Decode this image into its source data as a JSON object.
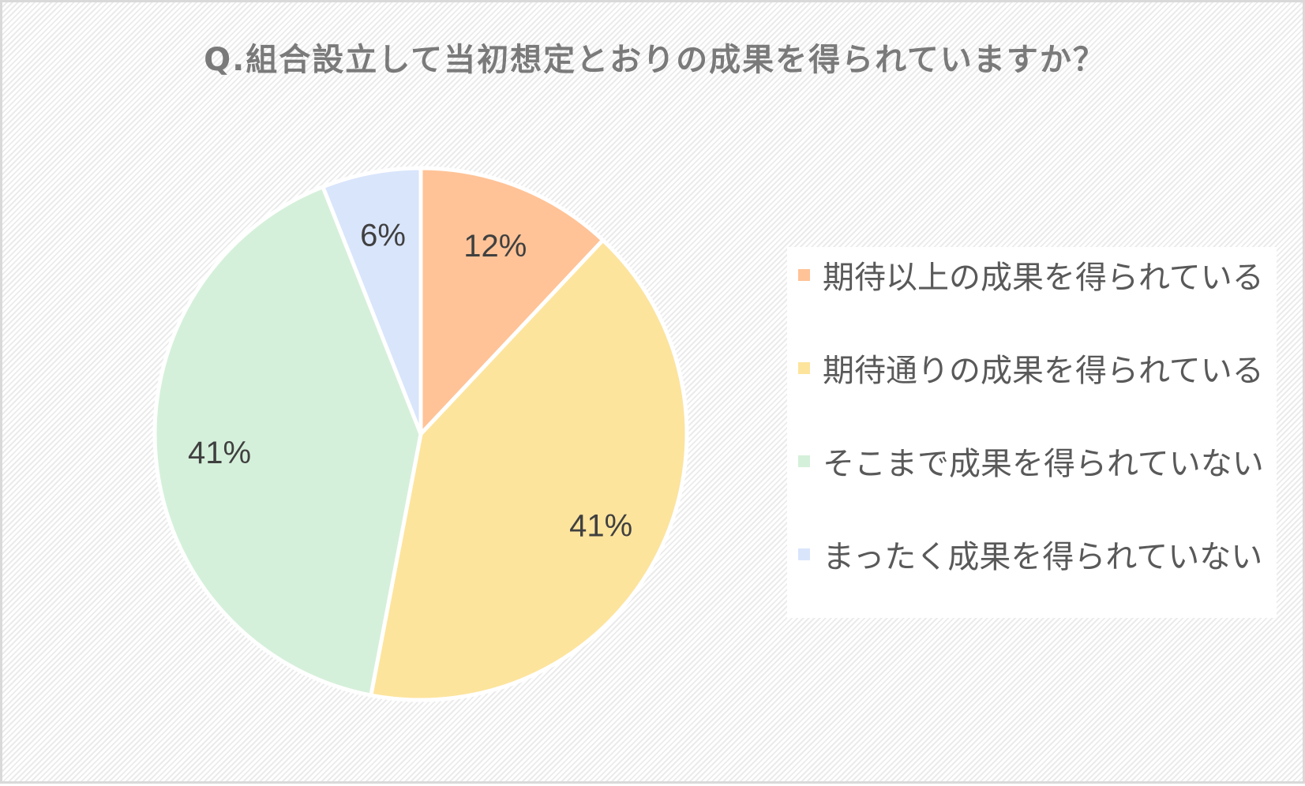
{
  "chart_data": {
    "type": "pie",
    "title": "Q.組合設立して当初想定とおりの成果を得られていますか？",
    "legend_position": "right",
    "start_angle": "12 o'clock, clockwise",
    "categories": [
      "期待以上の成果を得られている",
      "期待通りの成果を得られている",
      "そこまで成果を得られていない",
      "まったく成果を得られていない"
    ],
    "values": [
      12,
      41,
      41,
      6
    ],
    "value_labels": [
      "12%",
      "41%",
      "41%",
      "6%"
    ],
    "colors": [
      "#ffc397",
      "#fde49d",
      "#d5f0da",
      "#d9e5fb"
    ]
  }
}
